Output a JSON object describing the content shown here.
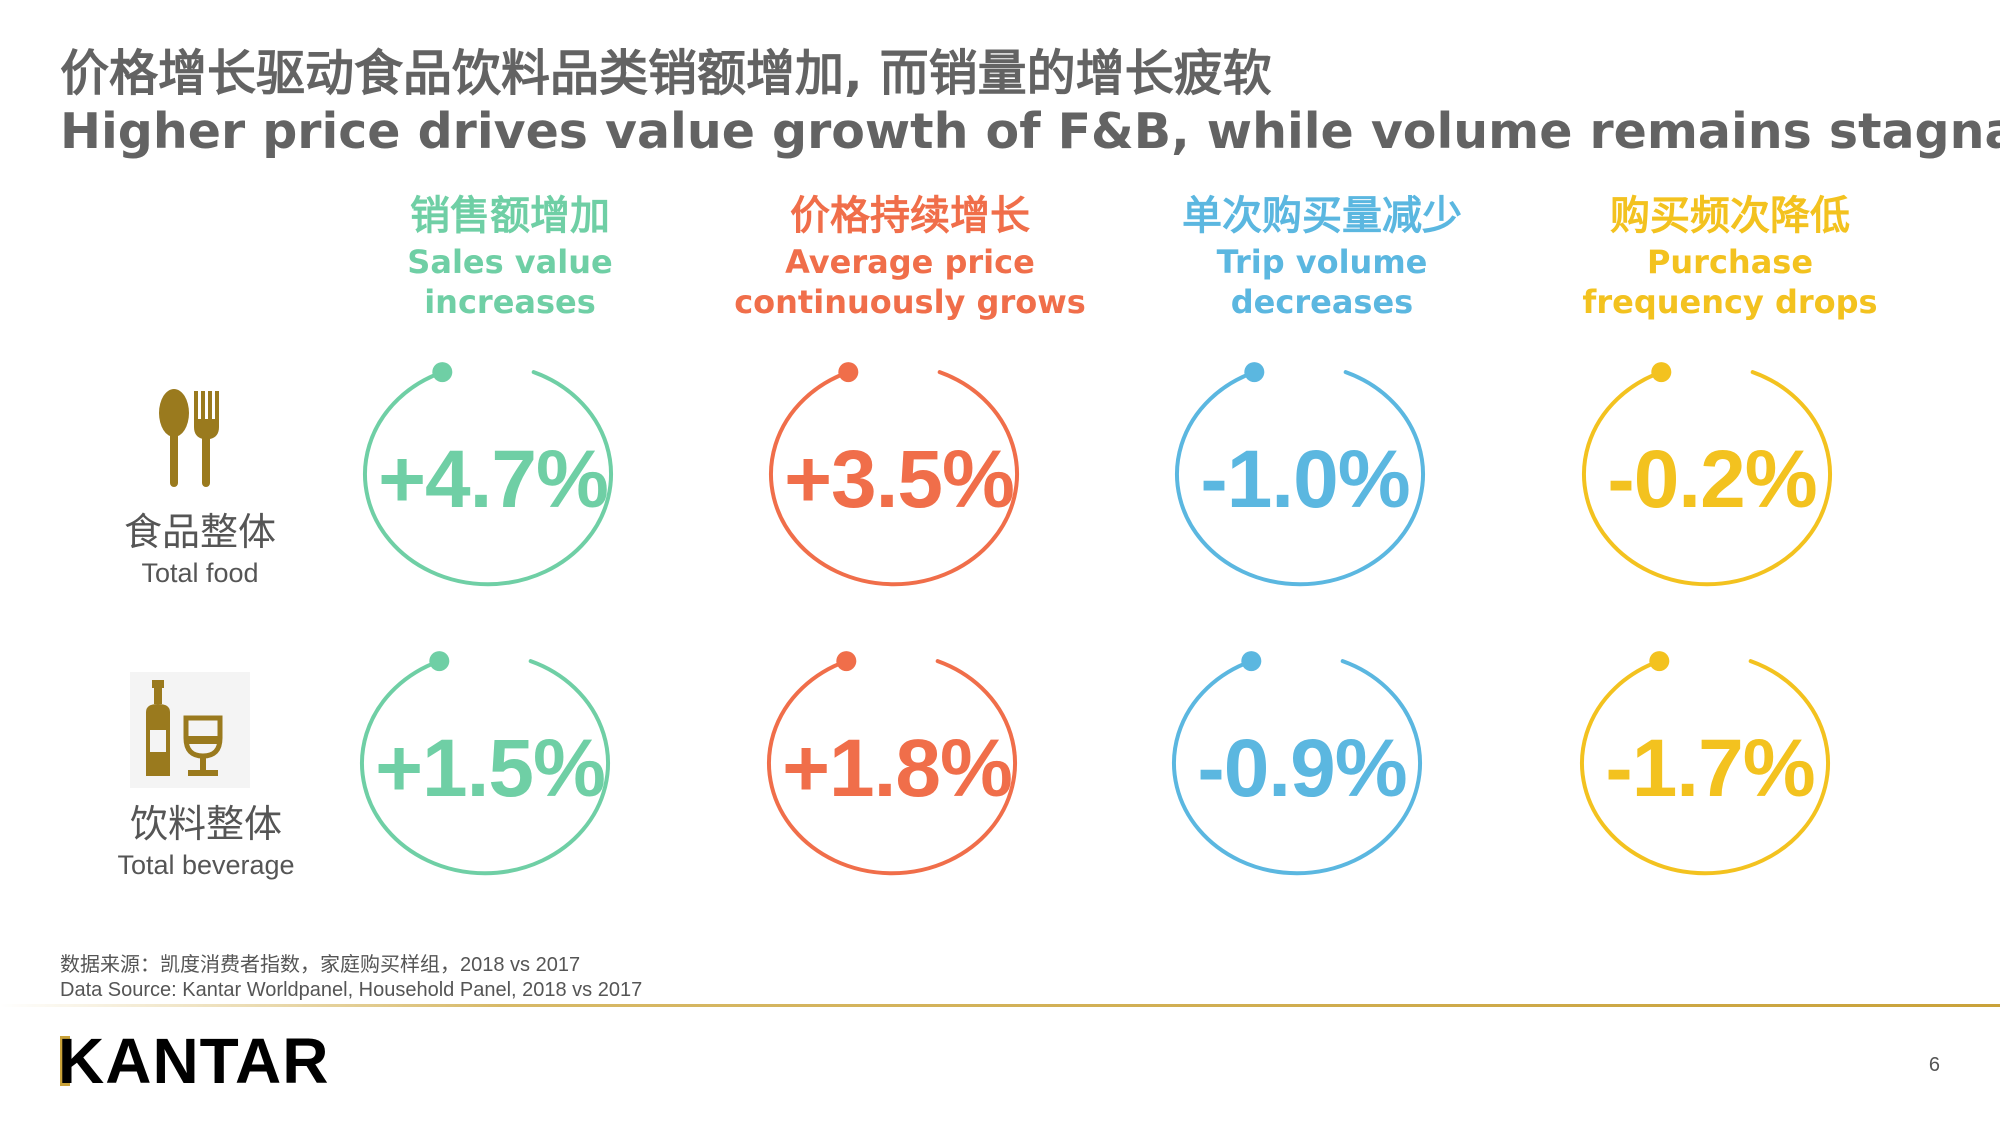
{
  "title": {
    "zh": "价格增长驱动食品饮料品类销额增加, 而销量的增长疲软",
    "en": "Higher price drives value growth of F&B, while volume remains stagnant"
  },
  "columns": [
    {
      "zh": "销售额增加",
      "en1": "Sales value",
      "en2": "increases",
      "color": "#6fcfa5"
    },
    {
      "zh": "价格持续增长",
      "en1": "Average price",
      "en2": "continuously grows",
      "color": "#f06e4a"
    },
    {
      "zh": "单次购买量减少",
      "en1": "Trip volume",
      "en2": "decreases",
      "color": "#5bb7e0"
    },
    {
      "zh": "购买频次降低",
      "en1": "Purchase",
      "en2": "frequency drops",
      "color": "#f3c21f"
    }
  ],
  "rows": [
    {
      "zh": "食品整体",
      "en": "Total food",
      "icon": "utensils-icon",
      "values": [
        "+4.7%",
        "+3.5%",
        "-1.0%",
        "-0.2%"
      ]
    },
    {
      "zh": "饮料整体",
      "en": "Total beverage",
      "icon": "bottle-glass-icon",
      "values": [
        "+1.5%",
        "+1.8%",
        "-0.9%",
        "-1.7%"
      ]
    }
  ],
  "source": {
    "zh": "数据来源：凯度消费者指数，家庭购买样组，2018 vs 2017",
    "en": "Data Source: Kantar Worldpanel, Household Panel, 2018 vs 2017"
  },
  "brand": "KANTAR",
  "page_number": "6",
  "colors": {
    "title": "#636363",
    "gold": "#c9a23a",
    "icon_gold": "#9a7a1e"
  }
}
